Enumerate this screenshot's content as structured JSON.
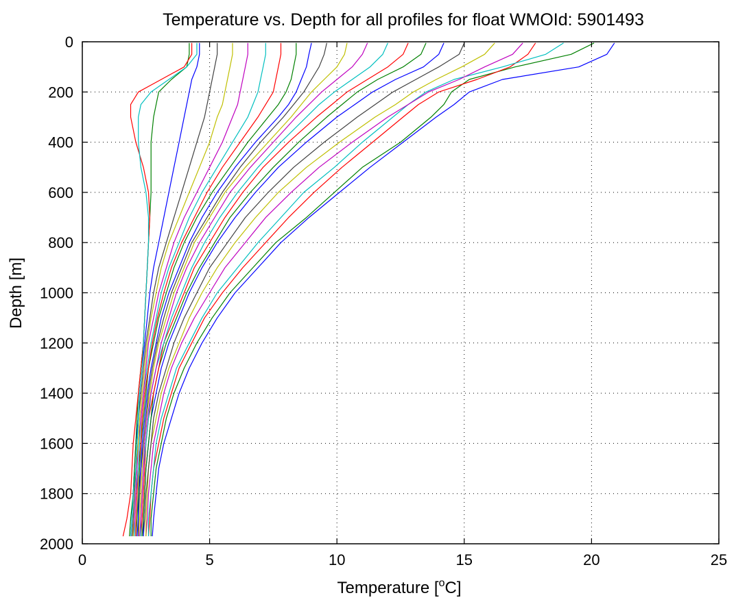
{
  "chart_data": {
    "type": "line",
    "title": "Temperature vs. Depth for all profiles for float WMOId: 5901493",
    "xlabel_main": "Temperature [",
    "xlabel_sup": "o",
    "xlabel_tail": "C]",
    "ylabel": "Depth [m]",
    "xlim": [
      0,
      25
    ],
    "ylim": [
      0,
      2000
    ],
    "y_reversed": true,
    "grid": true,
    "grid_style": "dotted",
    "x_ticks": [
      0,
      5,
      10,
      15,
      20,
      25
    ],
    "x_tick_labels": [
      "0",
      "5",
      "10",
      "15",
      "20",
      "25"
    ],
    "y_ticks": [
      0,
      200,
      400,
      600,
      800,
      1000,
      1200,
      1400,
      1600,
      1800,
      2000
    ],
    "y_tick_labels": [
      "0",
      "200",
      "400",
      "600",
      "800",
      "1000",
      "1200",
      "1400",
      "1600",
      "1800",
      "2000"
    ],
    "series_colors": [
      "#0000ff",
      "#008000",
      "#ff0000",
      "#00bfbf",
      "#bf00bf",
      "#bfbf00",
      "#404040"
    ],
    "depths": [
      5,
      50,
      100,
      150,
      200,
      250,
      300,
      400,
      500,
      600,
      700,
      800,
      900,
      1000,
      1100,
      1200,
      1300,
      1400,
      1500,
      1600,
      1700,
      1800,
      1900,
      1970
    ],
    "series": [
      {
        "values": [
          20.9,
          20.6,
          19.5,
          16.5,
          15.2,
          14.6,
          13.9,
          12.6,
          11.3,
          10.1,
          8.9,
          7.8,
          6.9,
          6.0,
          5.3,
          4.7,
          4.2,
          3.8,
          3.5,
          3.2,
          3.0,
          2.9,
          2.8,
          2.75
        ]
      },
      {
        "values": [
          20.1,
          19.2,
          17.0,
          15.2,
          14.5,
          14.2,
          13.7,
          12.5,
          11.0,
          9.9,
          8.8,
          7.6,
          6.7,
          5.8,
          5.1,
          4.5,
          4.0,
          3.6,
          3.3,
          3.1,
          2.9,
          2.8,
          2.7,
          2.7
        ]
      },
      {
        "values": [
          17.8,
          17.5,
          16.8,
          15.5,
          14.0,
          13.2,
          12.6,
          11.4,
          10.2,
          9.1,
          8.1,
          7.2,
          6.3,
          5.5,
          4.8,
          4.3,
          3.8,
          3.5,
          3.2,
          3.0,
          2.8,
          2.7,
          2.65,
          2.6
        ]
      },
      {
        "values": [
          18.9,
          18.2,
          16.5,
          14.6,
          13.5,
          12.8,
          12.2,
          11.0,
          9.9,
          8.7,
          7.8,
          6.9,
          6.1,
          5.3,
          4.7,
          4.2,
          3.7,
          3.4,
          3.1,
          2.9,
          2.8,
          2.7,
          2.6,
          2.6
        ]
      },
      {
        "values": [
          17.3,
          16.9,
          15.8,
          14.8,
          13.6,
          12.8,
          12.0,
          10.6,
          9.3,
          8.2,
          7.2,
          6.4,
          5.6,
          5.0,
          4.4,
          3.9,
          3.5,
          3.2,
          3.0,
          2.8,
          2.7,
          2.6,
          2.55,
          2.5
        ]
      },
      {
        "values": [
          16.2,
          15.8,
          14.9,
          13.9,
          13.0,
          12.3,
          11.5,
          10.1,
          8.8,
          7.7,
          6.8,
          6.0,
          5.3,
          4.7,
          4.2,
          3.8,
          3.4,
          3.1,
          2.9,
          2.7,
          2.6,
          2.55,
          2.5,
          2.5
        ]
      },
      {
        "values": [
          15.0,
          14.8,
          14.0,
          13.1,
          12.2,
          11.5,
          10.8,
          9.5,
          8.3,
          7.3,
          6.4,
          5.7,
          5.0,
          4.5,
          4.0,
          3.6,
          3.3,
          3.0,
          2.8,
          2.7,
          2.6,
          2.5,
          2.45,
          2.4
        ]
      },
      {
        "values": [
          14.2,
          14.0,
          13.4,
          12.3,
          11.4,
          10.7,
          10.0,
          8.8,
          7.7,
          6.8,
          6.0,
          5.3,
          4.7,
          4.2,
          3.8,
          3.4,
          3.1,
          2.9,
          2.7,
          2.6,
          2.5,
          2.45,
          2.4,
          2.4
        ]
      },
      {
        "values": [
          13.5,
          13.3,
          12.6,
          11.6,
          10.8,
          10.2,
          9.6,
          8.5,
          7.5,
          6.6,
          5.8,
          5.2,
          4.6,
          4.1,
          3.7,
          3.3,
          3.0,
          2.8,
          2.7,
          2.6,
          2.5,
          2.45,
          2.4,
          2.35
        ]
      },
      {
        "values": [
          12.8,
          12.6,
          12.0,
          11.2,
          10.4,
          9.8,
          9.2,
          8.1,
          7.1,
          6.3,
          5.6,
          5.0,
          4.4,
          4.0,
          3.6,
          3.2,
          3.0,
          2.8,
          2.6,
          2.5,
          2.45,
          2.4,
          2.35,
          2.3
        ]
      },
      {
        "values": [
          12.0,
          11.8,
          11.3,
          10.6,
          9.9,
          9.3,
          8.8,
          7.8,
          6.9,
          6.1,
          5.4,
          4.8,
          4.3,
          3.9,
          3.5,
          3.2,
          2.9,
          2.7,
          2.6,
          2.5,
          2.4,
          2.35,
          2.3,
          2.3
        ]
      },
      {
        "values": [
          11.2,
          11.0,
          10.6,
          10.0,
          9.4,
          8.9,
          8.4,
          7.5,
          6.6,
          5.8,
          5.2,
          4.6,
          4.1,
          3.7,
          3.4,
          3.1,
          2.9,
          2.7,
          2.55,
          2.45,
          2.4,
          2.35,
          2.3,
          2.25
        ]
      },
      {
        "values": [
          10.4,
          10.3,
          10.0,
          9.5,
          9.0,
          8.6,
          8.2,
          7.3,
          6.4,
          5.6,
          5.0,
          4.4,
          4.0,
          3.6,
          3.3,
          3.0,
          2.8,
          2.65,
          2.5,
          2.4,
          2.35,
          2.3,
          2.25,
          2.2
        ]
      },
      {
        "values": [
          9.6,
          9.5,
          9.3,
          9.0,
          8.7,
          8.3,
          7.9,
          7.0,
          6.2,
          5.5,
          4.9,
          4.3,
          3.9,
          3.5,
          3.2,
          2.95,
          2.75,
          2.6,
          2.5,
          2.4,
          2.3,
          2.25,
          2.2,
          2.2
        ]
      },
      {
        "values": [
          9.0,
          8.9,
          8.8,
          8.6,
          8.4,
          8.1,
          7.7,
          6.8,
          6.0,
          5.3,
          4.7,
          4.2,
          3.8,
          3.4,
          3.1,
          2.9,
          2.7,
          2.55,
          2.45,
          2.35,
          2.3,
          2.2,
          2.2,
          2.15
        ]
      },
      {
        "values": [
          8.4,
          8.4,
          8.3,
          8.2,
          8.0,
          7.7,
          7.3,
          6.5,
          5.8,
          5.1,
          4.5,
          4.0,
          3.6,
          3.3,
          3.0,
          2.8,
          2.6,
          2.5,
          2.4,
          2.3,
          2.25,
          2.2,
          2.15,
          2.1
        ]
      },
      {
        "values": [
          7.8,
          7.8,
          7.7,
          7.6,
          7.5,
          7.2,
          6.9,
          6.2,
          5.5,
          4.9,
          4.4,
          3.9,
          3.5,
          3.2,
          2.95,
          2.75,
          2.6,
          2.45,
          2.35,
          2.3,
          2.2,
          2.15,
          2.1,
          2.1
        ]
      },
      {
        "values": [
          7.2,
          7.2,
          7.1,
          7.0,
          6.9,
          6.7,
          6.5,
          5.9,
          5.3,
          4.7,
          4.2,
          3.8,
          3.4,
          3.1,
          2.9,
          2.7,
          2.55,
          2.4,
          2.3,
          2.25,
          2.2,
          2.1,
          2.05,
          2.05
        ]
      },
      {
        "values": [
          6.5,
          6.5,
          6.4,
          6.3,
          6.2,
          6.1,
          5.9,
          5.5,
          5.0,
          4.5,
          4.0,
          3.6,
          3.3,
          3.0,
          2.8,
          2.6,
          2.5,
          2.4,
          2.3,
          2.2,
          2.15,
          2.1,
          2.05,
          2.0
        ]
      },
      {
        "values": [
          5.9,
          5.9,
          5.8,
          5.7,
          5.6,
          5.5,
          5.3,
          5.0,
          4.6,
          4.2,
          3.8,
          3.4,
          3.1,
          2.9,
          2.7,
          2.55,
          2.45,
          2.35,
          2.25,
          2.2,
          2.1,
          2.05,
          2.0,
          2.0
        ]
      },
      {
        "values": [
          5.3,
          5.3,
          5.2,
          5.1,
          5.0,
          4.9,
          4.8,
          4.5,
          4.2,
          3.9,
          3.6,
          3.3,
          3.0,
          2.8,
          2.65,
          2.5,
          2.4,
          2.3,
          2.2,
          2.15,
          2.1,
          2.05,
          2.0,
          1.95
        ]
      },
      {
        "values": [
          4.6,
          4.6,
          4.5,
          4.3,
          4.2,
          4.1,
          4.0,
          3.8,
          3.6,
          3.4,
          3.2,
          3.0,
          2.8,
          2.65,
          2.55,
          2.45,
          2.35,
          2.25,
          2.2,
          2.1,
          2.05,
          2.0,
          1.95,
          1.9
        ]
      },
      {
        "values": [
          4.2,
          4.2,
          4.1,
          3.5,
          3.0,
          2.9,
          2.8,
          2.7,
          2.7,
          2.7,
          2.65,
          2.6,
          2.55,
          2.5,
          2.45,
          2.4,
          2.3,
          2.2,
          2.15,
          2.1,
          2.05,
          2.0,
          1.9,
          1.85
        ]
      },
      {
        "values": [
          4.3,
          4.3,
          4.0,
          3.1,
          2.2,
          1.9,
          1.9,
          2.1,
          2.4,
          2.6,
          2.65,
          2.6,
          2.55,
          2.5,
          2.45,
          2.4,
          2.3,
          2.2,
          2.1,
          2.0,
          1.95,
          1.9,
          1.75,
          1.6
        ]
      },
      {
        "values": [
          4.5,
          4.5,
          4.1,
          3.4,
          2.7,
          2.3,
          2.2,
          2.2,
          2.3,
          2.5,
          2.6,
          2.6,
          2.55,
          2.5,
          2.45,
          2.4,
          2.35,
          2.25,
          2.2,
          2.15,
          2.1,
          2.0,
          1.95,
          1.9
        ]
      }
    ]
  }
}
